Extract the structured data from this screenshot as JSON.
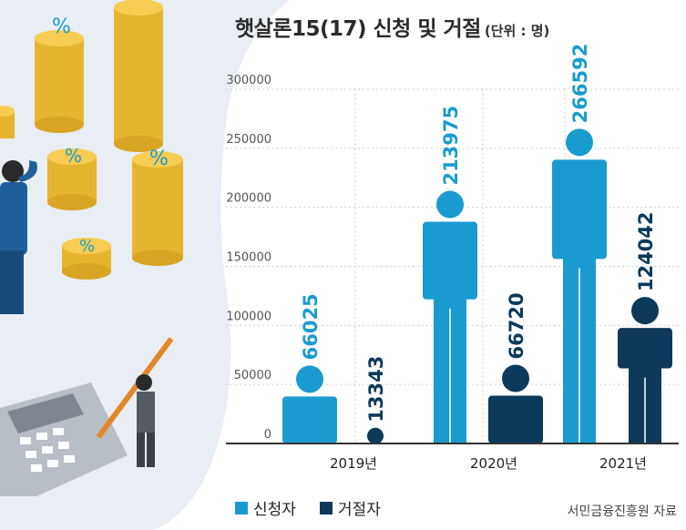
{
  "title": "햇살론15(17) 신청 및 거절",
  "unit": "(단위 : 명)",
  "legend": {
    "applicants": "신청자",
    "rejected": "거절자"
  },
  "source": "서민금융진흥원 자료",
  "colors": {
    "applicants": "#1a9bd0",
    "rejected": "#0d3a5a",
    "axis": "#333333",
    "grid": "#d0d0d0"
  },
  "chart_data": {
    "type": "bar",
    "categories": [
      "2019년",
      "2020년",
      "2021년"
    ],
    "series": [
      {
        "name": "신청자",
        "values": [
          66025,
          213975,
          266592
        ]
      },
      {
        "name": "거절자",
        "values": [
          13343,
          66720,
          124042
        ]
      }
    ],
    "y_ticks": [
      "0",
      "50000",
      "100000",
      "150000",
      "200000",
      "250000",
      "300000"
    ],
    "ylim": [
      0,
      300000
    ],
    "grid": true,
    "legend_position": "bottom-left"
  }
}
